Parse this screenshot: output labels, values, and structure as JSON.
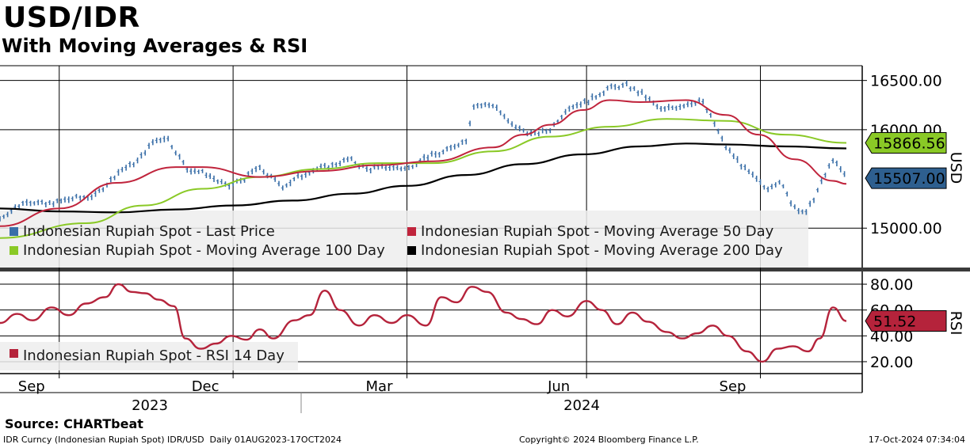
{
  "header": {
    "title": "USD/IDR",
    "subtitle": "With Moving Averages & RSI",
    "source": "Source: CHARTbeat",
    "footer_left": "IDR Curncy (Indonesian Rupiah Spot) IDR/USD  Daily 01AUG2023-17OCT2024",
    "footer_mid": "Copyright© 2024 Bloomberg Finance L.P.",
    "footer_right": "17-Oct-2024 07:34:04"
  },
  "colors": {
    "last_price": "#3a6fa8",
    "ma50": "#c0243c",
    "ma100": "#8ac926",
    "ma200": "#000000",
    "rsi": "#b5233b",
    "legend_bg": "#ededed"
  },
  "chart_data": [
    {
      "type": "line",
      "panel": "price",
      "y_axis_title": "USD",
      "ylim": [
        14600,
        16650
      ],
      "y_ticks": [
        "16500.00",
        "16000.00",
        "15000.00"
      ],
      "y_tick_values": [
        16500,
        16000,
        15000
      ],
      "x_tick_labels": [
        "Sep",
        "Dec",
        "Mar",
        "Jun",
        "Sep"
      ],
      "x_tick_dates": [
        "2023-09-01",
        "2023-12-01",
        "2024-03-01",
        "2024-06-03",
        "2024-09-02"
      ],
      "x_year_labels": [
        "2023",
        "2024"
      ],
      "x_range": [
        "2023-08-01",
        "2024-10-17"
      ],
      "grid": true,
      "legend_position": "bottom-left",
      "last_value_labels": [
        {
          "series": "Indonesian Rupiah Spot - Moving Average 100 Day",
          "text": "15866.56",
          "value": 15866.56
        },
        {
          "series": "Indonesian Rupiah Spot - Last Price",
          "text": "15507.00",
          "value": 15507
        }
      ],
      "series": [
        {
          "name": "Indonesian Rupiah Spot - Last Price",
          "style": "bars",
          "x": [
            "2023-08-01",
            "2023-08-15",
            "2023-08-25",
            "2023-09-08",
            "2023-09-20",
            "2023-10-02",
            "2023-10-12",
            "2023-10-20",
            "2023-10-27",
            "2023-11-07",
            "2023-11-16",
            "2023-11-28",
            "2023-12-07",
            "2023-12-14",
            "2023-12-27",
            "2024-01-10",
            "2024-01-19",
            "2024-01-31",
            "2024-02-09",
            "2024-02-20",
            "2024-03-01",
            "2024-03-08",
            "2024-03-20",
            "2024-04-01",
            "2024-04-05",
            "2024-04-16",
            "2024-04-24",
            "2024-05-06",
            "2024-05-15",
            "2024-05-24",
            "2024-06-05",
            "2024-06-14",
            "2024-06-24",
            "2024-07-03",
            "2024-07-12",
            "2024-07-24",
            "2024-08-02",
            "2024-08-08",
            "2024-08-15",
            "2024-08-26",
            "2024-09-05",
            "2024-09-12",
            "2024-09-19",
            "2024-09-26",
            "2024-10-03",
            "2024-10-10",
            "2024-10-17"
          ],
          "y": [
            15100,
            15280,
            15240,
            15300,
            15330,
            15570,
            15680,
            15870,
            15930,
            15600,
            15560,
            15420,
            15500,
            15620,
            15420,
            15580,
            15620,
            15700,
            15600,
            15620,
            15600,
            15700,
            15770,
            15900,
            16250,
            16250,
            16050,
            15950,
            16000,
            16220,
            16300,
            16420,
            16450,
            16350,
            16200,
            16250,
            16300,
            16100,
            15820,
            15580,
            15400,
            15480,
            15230,
            15150,
            15420,
            15700,
            15507
          ]
        },
        {
          "name": "Indonesian Rupiah Spot - Moving Average 50 Day",
          "style": "line",
          "x": [
            "2023-08-01",
            "2023-09-01",
            "2023-10-01",
            "2023-11-01",
            "2023-11-15",
            "2023-12-15",
            "2024-01-15",
            "2024-02-15",
            "2024-03-15",
            "2024-04-15",
            "2024-05-01",
            "2024-05-15",
            "2024-06-01",
            "2024-06-15",
            "2024-07-01",
            "2024-07-25",
            "2024-08-15",
            "2024-09-01",
            "2024-09-20",
            "2024-10-10",
            "2024-10-17"
          ],
          "y": [
            15020,
            15200,
            15460,
            15620,
            15620,
            15520,
            15580,
            15640,
            15680,
            15820,
            15950,
            16050,
            16200,
            16300,
            16280,
            16300,
            16150,
            15950,
            15700,
            15480,
            15450
          ]
        },
        {
          "name": "Indonesian Rupiah Spot - Moving Average 100 Day",
          "style": "line",
          "x": [
            "2023-08-01",
            "2023-09-15",
            "2023-10-15",
            "2023-11-15",
            "2023-12-15",
            "2024-01-15",
            "2024-02-15",
            "2024-03-15",
            "2024-04-15",
            "2024-05-15",
            "2024-06-15",
            "2024-07-15",
            "2024-08-15",
            "2024-09-15",
            "2024-10-17"
          ],
          "y": [
            14900,
            15050,
            15230,
            15400,
            15520,
            15600,
            15660,
            15660,
            15780,
            15930,
            16030,
            16110,
            16090,
            15950,
            15866.56
          ]
        },
        {
          "name": "Indonesian Rupiah Spot - Moving Average 200 Day",
          "style": "line",
          "x": [
            "2023-08-01",
            "2023-09-01",
            "2023-10-01",
            "2023-11-01",
            "2023-12-01",
            "2024-01-01",
            "2024-02-01",
            "2024-03-01",
            "2024-04-01",
            "2024-05-01",
            "2024-06-01",
            "2024-07-01",
            "2024-07-25",
            "2024-08-15",
            "2024-09-15",
            "2024-10-17"
          ],
          "y": [
            15200,
            15170,
            15160,
            15190,
            15230,
            15280,
            15350,
            15430,
            15540,
            15650,
            15750,
            15830,
            15860,
            15850,
            15830,
            15810
          ]
        }
      ]
    },
    {
      "type": "line",
      "panel": "rsi",
      "y_axis_title": "RSI",
      "ylim": [
        12,
        88
      ],
      "y_ticks": [
        "80.00",
        "60.00",
        "40.00",
        "20.00"
      ],
      "y_tick_values": [
        80,
        60,
        40,
        20
      ],
      "grid": true,
      "legend_position": "bottom-left",
      "last_value_labels": [
        {
          "series": "Indonesian Rupiah Spot - RSI 14 Day",
          "text": "51.52",
          "value": 51.52
        }
      ],
      "series": [
        {
          "name": "Indonesian Rupiah Spot - RSI 14 Day",
          "x": [
            "2023-08-01",
            "2023-08-10",
            "2023-08-18",
            "2023-08-28",
            "2023-09-06",
            "2023-09-15",
            "2023-09-25",
            "2023-10-02",
            "2023-10-09",
            "2023-10-16",
            "2023-10-23",
            "2023-10-31",
            "2023-11-06",
            "2023-11-14",
            "2023-11-22",
            "2023-11-30",
            "2023-12-08",
            "2023-12-15",
            "2023-12-22",
            "2024-01-02",
            "2024-01-10",
            "2024-01-18",
            "2024-01-26",
            "2024-02-05",
            "2024-02-13",
            "2024-02-22",
            "2024-03-01",
            "2024-03-11",
            "2024-03-19",
            "2024-03-27",
            "2024-04-04",
            "2024-04-12",
            "2024-04-22",
            "2024-04-30",
            "2024-05-08",
            "2024-05-16",
            "2024-05-24",
            "2024-06-03",
            "2024-06-11",
            "2024-06-19",
            "2024-06-27",
            "2024-07-05",
            "2024-07-15",
            "2024-07-23",
            "2024-07-31",
            "2024-08-08",
            "2024-08-16",
            "2024-08-26",
            "2024-09-03",
            "2024-09-11",
            "2024-09-19",
            "2024-09-27",
            "2024-10-03",
            "2024-10-10",
            "2024-10-17"
          ],
          "y": [
            50,
            57,
            52,
            62,
            56,
            65,
            70,
            80,
            74,
            73,
            68,
            63,
            38,
            30,
            34,
            40,
            37,
            45,
            38,
            52,
            56,
            75,
            60,
            48,
            56,
            50,
            56,
            48,
            70,
            66,
            78,
            74,
            58,
            53,
            49,
            60,
            55,
            67,
            60,
            49,
            58,
            51,
            43,
            38,
            42,
            48,
            40,
            28,
            20,
            30,
            32,
            28,
            38,
            62,
            51.52
          ]
        }
      ]
    }
  ]
}
